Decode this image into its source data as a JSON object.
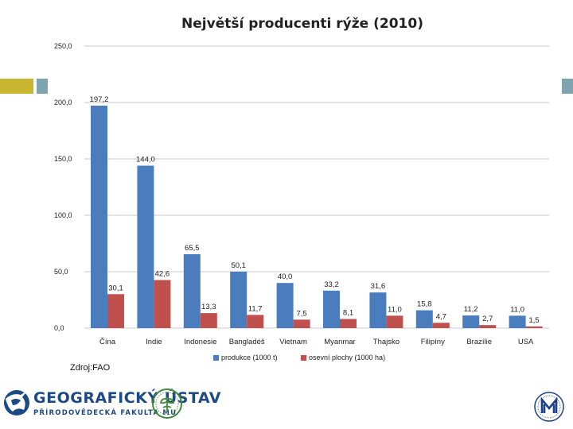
{
  "chart_data": {
    "type": "bar",
    "title": "Největší producenti rýže (2010)",
    "categories": [
      "Čína",
      "Indie",
      "Indonesie",
      "Bangladéš",
      "Vietnam",
      "Myanmar",
      "Thajsko",
      "Filipíny",
      "Brazílie",
      "USA"
    ],
    "series": [
      {
        "name": "produkce (1000 t)",
        "color": "#4a7dbe",
        "values": [
          197.2,
          144.0,
          65.5,
          50.1,
          40.0,
          33.2,
          31.6,
          15.8,
          11.2,
          11.0
        ],
        "labels": [
          "197,2",
          "144,0",
          "65,5",
          "50,1",
          "40,0",
          "33,2",
          "31,6",
          "15,8",
          "11,2",
          "11,0"
        ]
      },
      {
        "name": "osevní plochy (1000 ha)",
        "color": "#c0504d",
        "values": [
          30.1,
          42.6,
          13.3,
          11.7,
          7.5,
          8.1,
          11.0,
          4.7,
          2.7,
          1.5
        ],
        "labels": [
          "30,1",
          "42,6",
          "13,3",
          "11,7",
          "7,5",
          "8,1",
          "11,0",
          "4,7",
          "2,7",
          "1,5"
        ]
      }
    ],
    "yticks": [
      "0,0",
      "50,0",
      "100,0",
      "150,0",
      "200,0",
      "250,0"
    ],
    "ylim": [
      0,
      250
    ],
    "grid": true,
    "legend": "bottom"
  },
  "source": "Zdroj:FAO",
  "footer": {
    "institute_name": "GEOGRAFICKÝ ÚSTAV",
    "faculty_name": "PŘÍRODOVĚDECKÁ FAKULTA MU"
  },
  "colors": {
    "accent_gold": "#c8b631",
    "accent_teal": "#7ea4ae",
    "brand_blue": "#1c4a86"
  }
}
